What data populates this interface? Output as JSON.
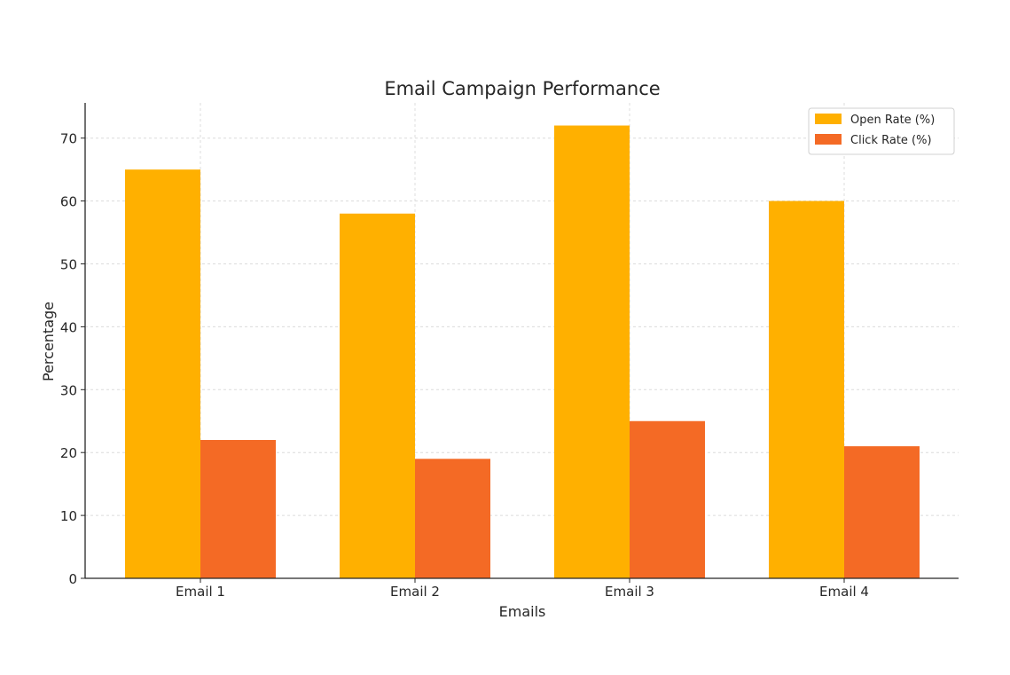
{
  "chart_data": {
    "type": "bar",
    "title": "Email Campaign Performance",
    "xlabel": "Emails",
    "ylabel": "Percentage",
    "categories": [
      "Email 1",
      "Email 2",
      "Email 3",
      "Email 4"
    ],
    "series": [
      {
        "name": "Open Rate (%)",
        "values": [
          65,
          58,
          72,
          60
        ],
        "color": "#FFB000"
      },
      {
        "name": "Click Rate (%)",
        "values": [
          22,
          19,
          25,
          21
        ],
        "color": "#F46A25"
      }
    ],
    "ylim": [
      0,
      75.6
    ],
    "yticks": [
      0,
      10,
      20,
      30,
      40,
      50,
      60,
      70
    ],
    "grid": true,
    "legend_position": "top-right"
  }
}
